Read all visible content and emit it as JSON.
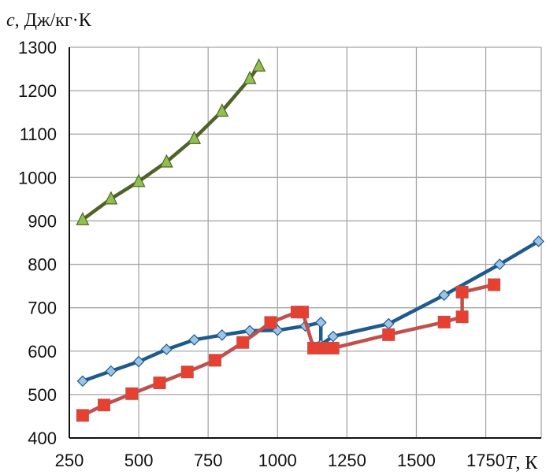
{
  "chart_data": {
    "type": "line",
    "ylabel_symbol": "c",
    "ylabel_unit": ", Дж/кг·К",
    "xlabel_symbol": "T",
    "xlabel_unit": ", К",
    "xlim": [
      250,
      1950
    ],
    "ylim": [
      400,
      1300
    ],
    "x_ticks": [
      250,
      500,
      750,
      1000,
      1250,
      1500,
      1750
    ],
    "x_tick_labels": [
      "250",
      "500",
      "750",
      "1000",
      "1250",
      "1500",
      "1750"
    ],
    "y_ticks": [
      400,
      500,
      600,
      700,
      800,
      900,
      1000,
      1100,
      1200,
      1300
    ],
    "y_tick_labels": [
      "400",
      "500",
      "600",
      "700",
      "800",
      "900",
      "1000",
      "1100",
      "1200",
      "1300"
    ],
    "grid": true,
    "series": [
      {
        "marker": "triangle",
        "color": "#4f6228",
        "marker_fill": "#92c050",
        "x": [
          298,
          400,
          500,
          600,
          700,
          800,
          900,
          933
        ],
        "y": [
          903,
          951,
          991,
          1036,
          1090,
          1153,
          1228,
          1257
        ]
      },
      {
        "marker": "diamond",
        "color": "#1f5a8c",
        "marker_fill": "#9cc4e6",
        "x": [
          298,
          400,
          500,
          600,
          700,
          800,
          900,
          1000,
          1100,
          1156,
          1156,
          1200,
          1400,
          1600,
          1800,
          1940
        ],
        "y": [
          531,
          554,
          576,
          604,
          626,
          637,
          647,
          648,
          658,
          666,
          615,
          634,
          663,
          729,
          800,
          853
        ]
      },
      {
        "marker": "square",
        "color": "#c0504d",
        "marker_fill": "#e84030",
        "x": [
          298,
          375,
          475,
          575,
          675,
          775,
          875,
          975,
          1070,
          1090,
          1130,
          1160,
          1200,
          1400,
          1600,
          1665,
          1665,
          1780
        ],
        "y": [
          452,
          476,
          502,
          527,
          552,
          579,
          620,
          666,
          690,
          690,
          607,
          607,
          607,
          638,
          667,
          679,
          736,
          753
        ]
      }
    ]
  }
}
